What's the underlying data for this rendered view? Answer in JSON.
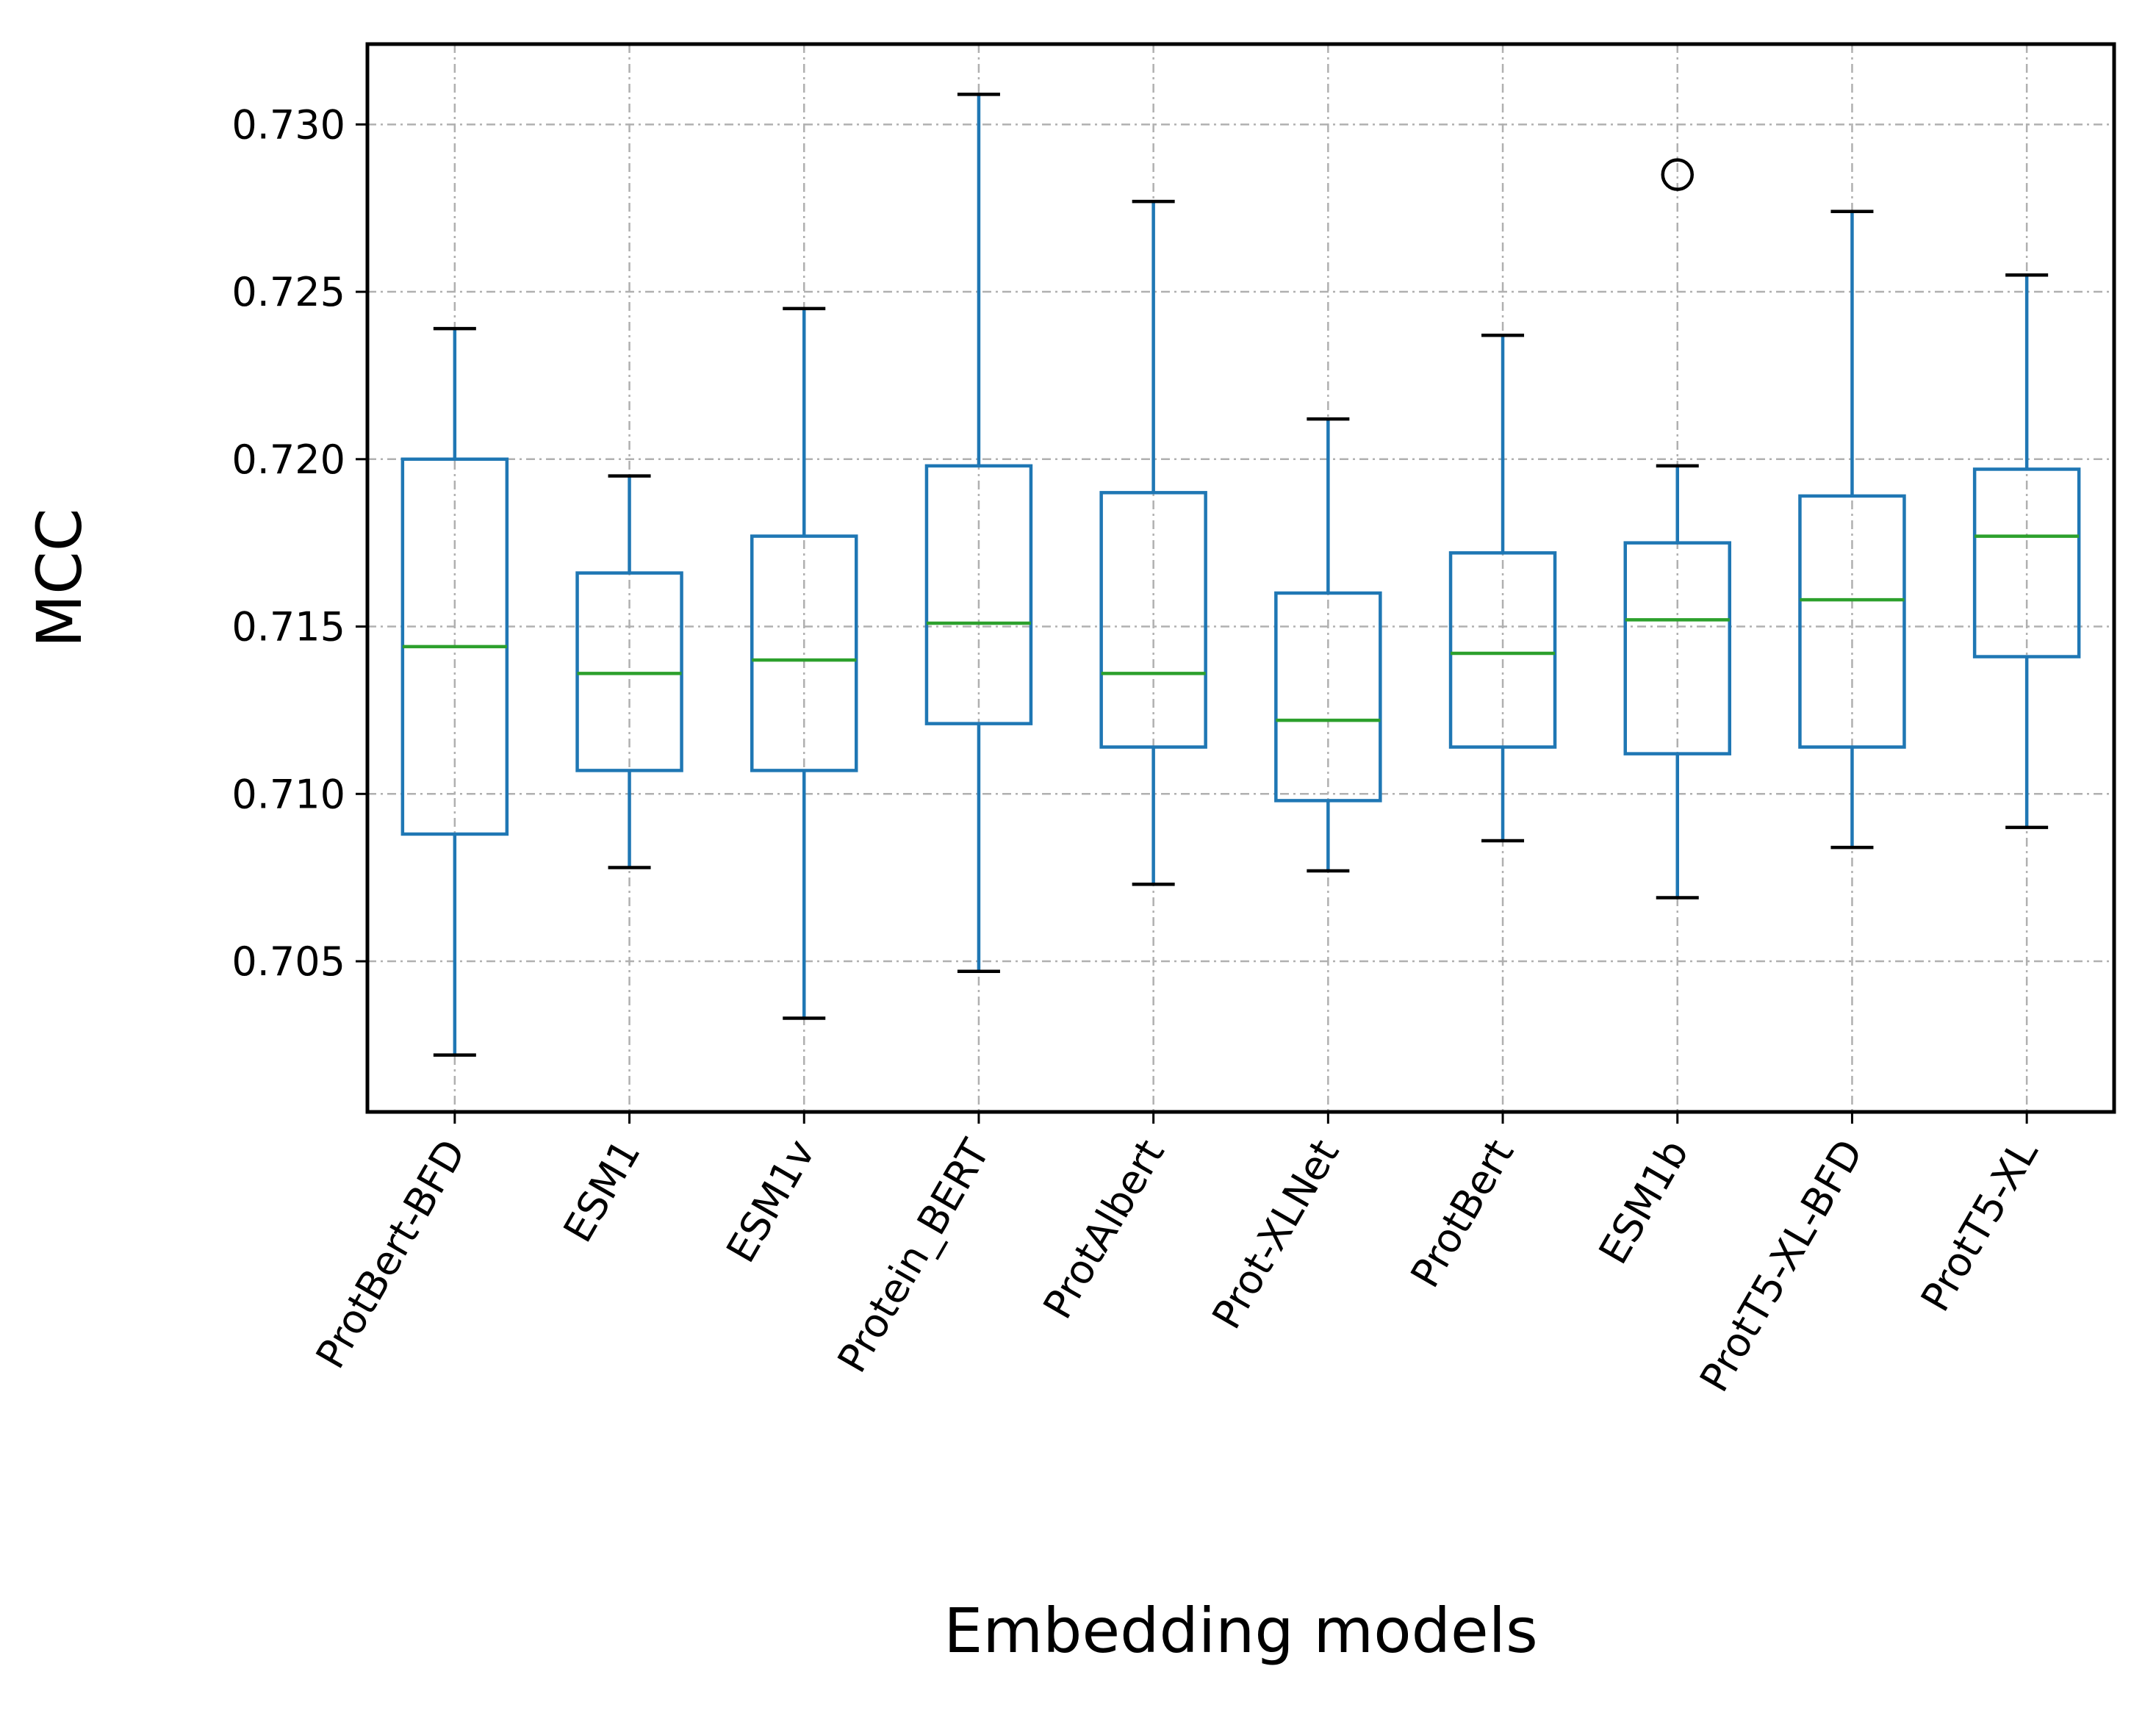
{
  "chart_data": {
    "type": "box",
    "xlabel": "Embedding models",
    "ylabel": "MCC",
    "ylim": [
      0.7005,
      0.7324
    ],
    "yticks": [
      0.705,
      0.71,
      0.715,
      0.72,
      0.725,
      0.73
    ],
    "ytick_labels": [
      "0.705",
      "0.710",
      "0.715",
      "0.720",
      "0.725",
      "0.730"
    ],
    "grid": true,
    "categories": [
      "ProtBert-BFD",
      "ESM1",
      "ESM1v",
      "Protein_BERT",
      "ProtAlbert",
      "Prot-XLNet",
      "ProtBert",
      "ESM1b",
      "ProtT5-XL-BFD",
      "ProtT5-XL"
    ],
    "boxes": [
      {
        "whisker_low": 0.7022,
        "q1": 0.7088,
        "median": 0.7144,
        "q3": 0.72,
        "whisker_high": 0.7239,
        "outliers": []
      },
      {
        "whisker_low": 0.7078,
        "q1": 0.7107,
        "median": 0.7136,
        "q3": 0.7166,
        "whisker_high": 0.7195,
        "outliers": []
      },
      {
        "whisker_low": 0.7033,
        "q1": 0.7107,
        "median": 0.714,
        "q3": 0.7177,
        "whisker_high": 0.7245,
        "outliers": []
      },
      {
        "whisker_low": 0.7047,
        "q1": 0.7121,
        "median": 0.7151,
        "q3": 0.7198,
        "whisker_high": 0.7309,
        "outliers": []
      },
      {
        "whisker_low": 0.7073,
        "q1": 0.7114,
        "median": 0.7136,
        "q3": 0.719,
        "whisker_high": 0.7277,
        "outliers": []
      },
      {
        "whisker_low": 0.7077,
        "q1": 0.7098,
        "median": 0.7122,
        "q3": 0.716,
        "whisker_high": 0.7212,
        "outliers": []
      },
      {
        "whisker_low": 0.7086,
        "q1": 0.7114,
        "median": 0.7142,
        "q3": 0.7172,
        "whisker_high": 0.7237,
        "outliers": []
      },
      {
        "whisker_low": 0.7069,
        "q1": 0.7112,
        "median": 0.7152,
        "q3": 0.7175,
        "whisker_high": 0.7198,
        "outliers": [
          0.7285
        ]
      },
      {
        "whisker_low": 0.7084,
        "q1": 0.7114,
        "median": 0.7158,
        "q3": 0.7189,
        "whisker_high": 0.7274,
        "outliers": []
      },
      {
        "whisker_low": 0.709,
        "q1": 0.7141,
        "median": 0.7177,
        "q3": 0.7197,
        "whisker_high": 0.7255,
        "outliers": []
      }
    ],
    "colors": {
      "box": "#1f77b4",
      "median": "#2ca02c",
      "cap": "#000000",
      "grid": "#b0b0b0",
      "outlier": "#000000"
    }
  }
}
